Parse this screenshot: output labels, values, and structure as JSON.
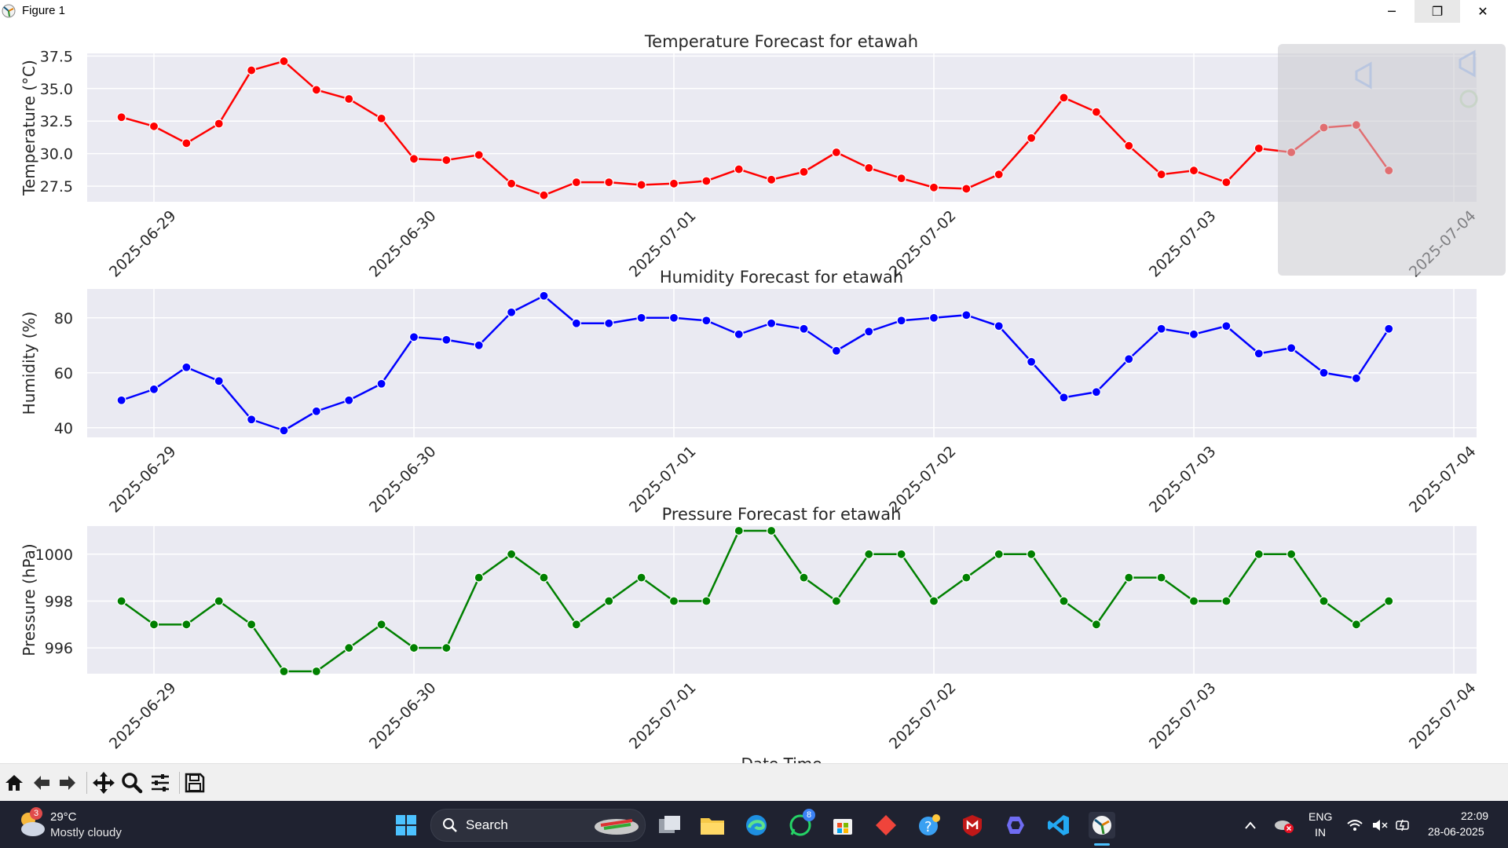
{
  "window": {
    "title": "Figure 1",
    "controls": {
      "minimize": "─",
      "maximize": "❐",
      "close": "✕"
    }
  },
  "toolbar": {
    "tools": [
      "home-icon",
      "back-arrow-icon",
      "forward-arrow-icon",
      "pan-icon",
      "zoom-icon",
      "configure-subplots-icon",
      "save-icon"
    ]
  },
  "chart_data": [
    {
      "type": "line",
      "title": "Temperature Forecast for etawah",
      "xlabel": "",
      "ylabel": "Temperature (°C)",
      "x_ticks": [
        "2025-06-29",
        "2025-06-30",
        "2025-07-01",
        "2025-07-02",
        "2025-07-03",
        "2025-07-04"
      ],
      "y_ticks": [
        "27.5",
        "30.0",
        "32.5",
        "35.0",
        "37.5"
      ],
      "ylim": [
        26.3,
        37.7
      ],
      "color": "#ff0000",
      "grid": true,
      "x": [
        "2025-06-28 21:00",
        "2025-06-29 00:00",
        "2025-06-29 03:00",
        "2025-06-29 06:00",
        "2025-06-29 09:00",
        "2025-06-29 12:00",
        "2025-06-29 15:00",
        "2025-06-29 18:00",
        "2025-06-29 21:00",
        "2025-06-30 00:00",
        "2025-06-30 03:00",
        "2025-06-30 06:00",
        "2025-06-30 09:00",
        "2025-06-30 12:00",
        "2025-06-30 15:00",
        "2025-06-30 18:00",
        "2025-06-30 21:00",
        "2025-07-01 00:00",
        "2025-07-01 03:00",
        "2025-07-01 06:00",
        "2025-07-01 09:00",
        "2025-07-01 12:00",
        "2025-07-01 15:00",
        "2025-07-01 18:00",
        "2025-07-01 21:00",
        "2025-07-02 00:00",
        "2025-07-02 03:00",
        "2025-07-02 06:00",
        "2025-07-02 09:00",
        "2025-07-02 12:00",
        "2025-07-02 15:00",
        "2025-07-02 18:00",
        "2025-07-02 21:00",
        "2025-07-03 00:00",
        "2025-07-03 03:00",
        "2025-07-03 06:00",
        "2025-07-03 09:00",
        "2025-07-03 12:00",
        "2025-07-03 15:00",
        "2025-07-03 18:00"
      ],
      "values": [
        32.8,
        32.1,
        30.8,
        32.3,
        36.4,
        37.1,
        34.9,
        34.2,
        32.7,
        29.6,
        29.5,
        29.9,
        27.7,
        26.8,
        27.8,
        27.8,
        27.6,
        27.7,
        27.9,
        28.8,
        28.0,
        28.6,
        30.1,
        28.9,
        28.1,
        27.4,
        27.3,
        28.4,
        31.2,
        34.3,
        33.2,
        30.6,
        28.4,
        28.7,
        27.8,
        30.4,
        30.1,
        32.0,
        32.2,
        28.7
      ]
    },
    {
      "type": "line",
      "title": "Humidity Forecast for etawah",
      "xlabel": "",
      "ylabel": "Humidity (%)",
      "x_ticks": [
        "2025-06-29",
        "2025-06-30",
        "2025-07-01",
        "2025-07-02",
        "2025-07-03",
        "2025-07-04"
      ],
      "y_ticks": [
        "40",
        "60",
        "80"
      ],
      "ylim": [
        36.5,
        90.5
      ],
      "color": "#0000ff",
      "grid": true,
      "x": [
        "2025-06-28 21:00",
        "2025-06-29 00:00",
        "2025-06-29 03:00",
        "2025-06-29 06:00",
        "2025-06-29 09:00",
        "2025-06-29 12:00",
        "2025-06-29 15:00",
        "2025-06-29 18:00",
        "2025-06-29 21:00",
        "2025-06-30 00:00",
        "2025-06-30 03:00",
        "2025-06-30 06:00",
        "2025-06-30 09:00",
        "2025-06-30 12:00",
        "2025-06-30 15:00",
        "2025-06-30 18:00",
        "2025-06-30 21:00",
        "2025-07-01 00:00",
        "2025-07-01 03:00",
        "2025-07-01 06:00",
        "2025-07-01 09:00",
        "2025-07-01 12:00",
        "2025-07-01 15:00",
        "2025-07-01 18:00",
        "2025-07-01 21:00",
        "2025-07-02 00:00",
        "2025-07-02 03:00",
        "2025-07-02 06:00",
        "2025-07-02 09:00",
        "2025-07-02 12:00",
        "2025-07-02 15:00",
        "2025-07-02 18:00",
        "2025-07-02 21:00",
        "2025-07-03 00:00",
        "2025-07-03 03:00",
        "2025-07-03 06:00",
        "2025-07-03 09:00",
        "2025-07-03 12:00",
        "2025-07-03 15:00",
        "2025-07-03 18:00"
      ],
      "values": [
        50,
        54,
        62,
        57,
        43,
        39,
        46,
        50,
        56,
        73,
        72,
        70,
        82,
        88,
        78,
        78,
        80,
        80,
        79,
        74,
        78,
        76,
        68,
        75,
        79,
        80,
        81,
        77,
        64,
        51,
        53,
        65,
        76,
        74,
        77,
        67,
        69,
        60,
        58,
        76
      ]
    },
    {
      "type": "line",
      "title": "Pressure Forecast for etawah",
      "xlabel": "Date Time",
      "ylabel": "Pressure (hPa)",
      "x_ticks": [
        "2025-06-29",
        "2025-06-30",
        "2025-07-01",
        "2025-07-02",
        "2025-07-03",
        "2025-07-04"
      ],
      "y_ticks": [
        "996",
        "998",
        "1000"
      ],
      "ylim": [
        994.9,
        1001.2
      ],
      "color": "#008000",
      "grid": true,
      "x": [
        "2025-06-28 21:00",
        "2025-06-29 00:00",
        "2025-06-29 03:00",
        "2025-06-29 06:00",
        "2025-06-29 09:00",
        "2025-06-29 12:00",
        "2025-06-29 15:00",
        "2025-06-29 18:00",
        "2025-06-29 21:00",
        "2025-06-30 00:00",
        "2025-06-30 03:00",
        "2025-06-30 06:00",
        "2025-06-30 09:00",
        "2025-06-30 12:00",
        "2025-06-30 15:00",
        "2025-06-30 18:00",
        "2025-06-30 21:00",
        "2025-07-01 00:00",
        "2025-07-01 03:00",
        "2025-07-01 06:00",
        "2025-07-01 09:00",
        "2025-07-01 12:00",
        "2025-07-01 15:00",
        "2025-07-01 18:00",
        "2025-07-01 21:00",
        "2025-07-02 00:00",
        "2025-07-02 03:00",
        "2025-07-02 06:00",
        "2025-07-02 09:00",
        "2025-07-02 12:00",
        "2025-07-02 15:00",
        "2025-07-02 18:00",
        "2025-07-02 21:00",
        "2025-07-03 00:00",
        "2025-07-03 03:00",
        "2025-07-03 06:00",
        "2025-07-03 09:00",
        "2025-07-03 12:00",
        "2025-07-03 15:00",
        "2025-07-03 18:00"
      ],
      "values": [
        998,
        997,
        997,
        998,
        997,
        995,
        995,
        996,
        997,
        996,
        996,
        999,
        1000,
        999,
        997,
        998,
        999,
        998,
        998,
        1001,
        1001,
        999,
        998,
        1000,
        1000,
        998,
        999,
        1000,
        1000,
        998,
        997,
        999,
        999,
        998,
        998,
        1000,
        1000,
        998,
        997,
        998
      ]
    }
  ],
  "taskbar": {
    "weather": {
      "temp": "29°C",
      "condition": "Mostly cloudy",
      "badge": "3"
    },
    "search_label": "Search",
    "whatsapp_badge": "8",
    "lang_line1": "ENG",
    "lang_line2": "IN",
    "time": "22:09",
    "date": "28-06-2025"
  }
}
